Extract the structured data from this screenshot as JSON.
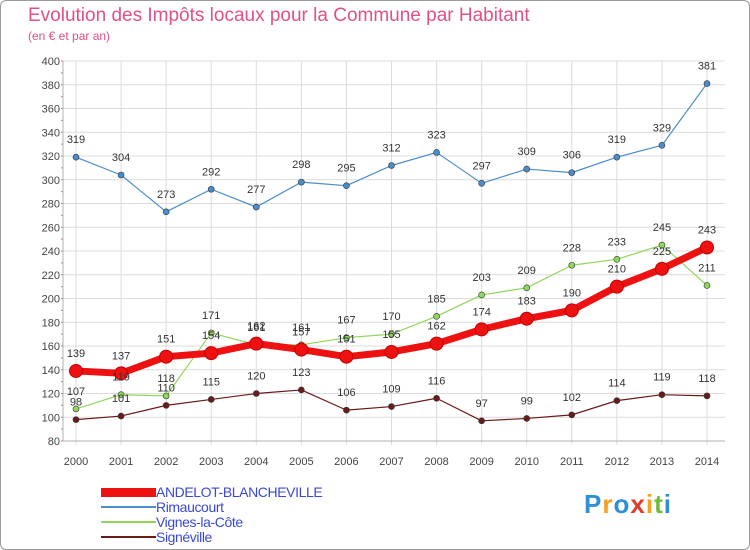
{
  "chart_data": {
    "type": "line",
    "title": "Evolution des Impôts locaux pour la Commune par Habitant",
    "subtitle": "(en € et par an)",
    "xlabel": "",
    "ylabel": "",
    "categories": [
      "2000",
      "2001",
      "2002",
      "2003",
      "2004",
      "2005",
      "2006",
      "2007",
      "2008",
      "2009",
      "2010",
      "2011",
      "2012",
      "2013",
      "2014"
    ],
    "ylim": [
      80,
      400
    ],
    "yticks": [
      "80",
      "100",
      "120",
      "140",
      "160",
      "180",
      "200",
      "220",
      "240",
      "260",
      "280",
      "300",
      "320",
      "340",
      "360",
      "380",
      "400"
    ],
    "grid": true,
    "legend_position": "bottom-left",
    "series": [
      {
        "name": "ANDELOT-BLANCHEVILLE",
        "color": "#ee1111",
        "values": [
          139,
          137,
          151,
          154,
          162,
          157,
          151,
          155,
          162,
          174,
          183,
          190,
          210,
          225,
          243
        ]
      },
      {
        "name": "Rimaucourt",
        "color": "#4a8ccc",
        "values": [
          319,
          304,
          273,
          292,
          277,
          298,
          295,
          312,
          323,
          297,
          309,
          306,
          319,
          329,
          381
        ]
      },
      {
        "name": "Vignes-la-Côte",
        "color": "#8fd65a",
        "values": [
          107,
          119,
          118,
          171,
          161,
          161,
          167,
          170,
          185,
          203,
          209,
          228,
          233,
          245,
          211
        ]
      },
      {
        "name": "Signéville",
        "color": "#6b1a1a",
        "values": [
          98,
          101,
          110,
          115,
          120,
          123,
          106,
          109,
          116,
          97,
          99,
          102,
          114,
          119,
          118
        ]
      }
    ],
    "value_labels": {
      "ANDELOT-BLANCHEVILLE": [
        "139",
        "137",
        "151",
        "154",
        "162",
        "157",
        "151",
        "155",
        "162",
        "174",
        "183",
        "190",
        "210",
        "225",
        "243"
      ],
      "Rimaucourt": [
        "319",
        "304",
        "273",
        "292",
        "277",
        "298",
        "295",
        "312",
        "323",
        "297",
        "309",
        "306",
        "319",
        "329",
        "381"
      ],
      "Vignes-la-Côte": [
        "107",
        "119",
        "118",
        "171",
        "161",
        "161",
        "167",
        "170",
        "185",
        "203",
        "209",
        "228",
        "233",
        "245",
        "211"
      ],
      "Signéville": [
        "98",
        "101",
        "110",
        "115",
        "120",
        "123",
        "106",
        "109",
        "116",
        "97",
        "99",
        "102",
        "114",
        "119",
        "118"
      ]
    }
  },
  "logo": {
    "text": "Proxiti",
    "letters": [
      "P",
      "r",
      "o",
      "x",
      "i",
      "t",
      "i"
    ],
    "colors": [
      "#2f8fd6",
      "#f5a020",
      "#2f8fd6",
      "#e03b2a",
      "#f5a020",
      "#6cbf3a",
      "#2f8fd6"
    ]
  }
}
